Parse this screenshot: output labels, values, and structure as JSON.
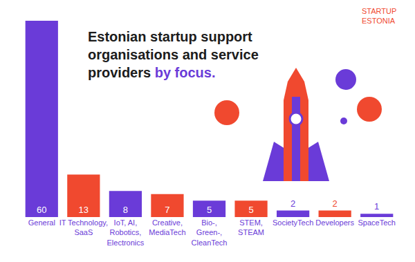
{
  "chart_data": {
    "type": "bar",
    "title": "Estonian startup support organisations and service providers by focus.",
    "annotations": [
      "STARTUP ESTONIA"
    ],
    "categories": [
      "General",
      "IT Technology, SaaS",
      "IoT, AI, Robotics, Electronics",
      "Creative, MediaTech",
      "Bio-, Green-, CleanTech",
      "STEM, STEAM",
      "SocietyTech",
      "Developers",
      "SpaceTech"
    ],
    "values": [
      60,
      13,
      8,
      7,
      5,
      5,
      2,
      2,
      1
    ],
    "colors": [
      "#6a3bd8",
      "#f0492f",
      "#6a3bd8",
      "#f0492f",
      "#6a3bd8",
      "#f0492f",
      "#6a3bd8",
      "#f0492f",
      "#6a3bd8"
    ],
    "ylim": [
      0,
      60
    ],
    "grid": false,
    "data_labels": true,
    "tick_labels": "x"
  }
}
